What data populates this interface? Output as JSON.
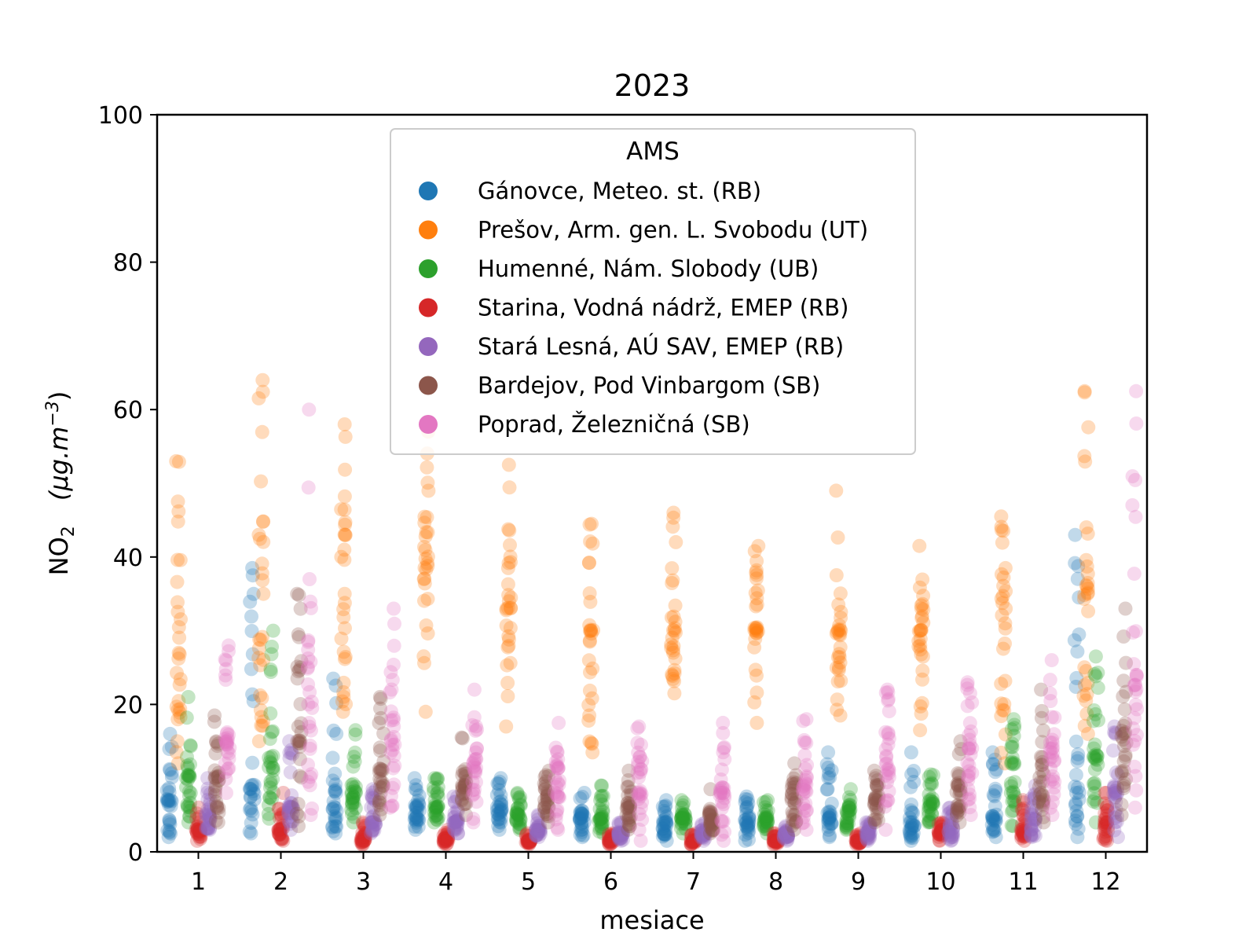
{
  "chart_data": {
    "type": "scatter",
    "title": "2023",
    "xlabel": "mesiace",
    "ylabel_main": "NO",
    "ylabel_sub": "2",
    "ylabel_unit": "(μg.m",
    "ylabel_unit_sup": "−3",
    "ylabel_unit_close": ")",
    "xlim": [
      0.5,
      12.5
    ],
    "ylim": [
      0,
      100
    ],
    "x_ticks": [
      1,
      2,
      3,
      4,
      5,
      6,
      7,
      8,
      9,
      10,
      11,
      12
    ],
    "y_ticks": [
      0,
      20,
      40,
      60,
      80,
      100
    ],
    "grid": false,
    "legend": {
      "title": "AMS",
      "placement": "top-center"
    },
    "series": [
      {
        "name": "Gánovce, Meteo. st. (RB)",
        "color": "#1f77b4",
        "offset": -0.35,
        "min": [
          2,
          2.5,
          2.5,
          3,
          3,
          2,
          1.5,
          1.5,
          2,
          1.5,
          2,
          2
        ],
        "max": [
          16,
          38.5,
          23.5,
          10,
          10,
          8,
          7,
          7.5,
          13.5,
          13.5,
          13.5,
          43
        ],
        "median": [
          7,
          9,
          6,
          6,
          6,
          4.5,
          4,
          4,
          5,
          4,
          4.5,
          8
        ]
      },
      {
        "name": "Prešov, Arm. gen. L. Svobodu (UT)",
        "color": "#ff7f0e",
        "offset": -0.24,
        "min": [
          12,
          15,
          19,
          19,
          17,
          13.5,
          21.5,
          17.5,
          18.5,
          16.5,
          12,
          16
        ],
        "max": [
          53,
          64,
          58,
          57,
          52.5,
          44.5,
          46,
          41.5,
          49,
          41.5,
          45.5,
          62.5
        ],
        "median": [
          27,
          35,
          35,
          37,
          33,
          30,
          30,
          30,
          30,
          30,
          31,
          35
        ]
      },
      {
        "name": "Humenné, Nám. Slobody (UB)",
        "color": "#2ca02c",
        "offset": -0.12,
        "min": [
          4,
          4.5,
          4,
          4,
          3,
          2.5,
          2.5,
          2.5,
          3,
          4,
          3.5,
          4
        ],
        "max": [
          21,
          30,
          16.5,
          10,
          8,
          9,
          7,
          7,
          8.5,
          10.5,
          18,
          26.5
        ],
        "median": [
          10,
          12,
          8,
          6,
          5,
          4.5,
          4.5,
          4.5,
          5.5,
          6.5,
          8,
          13
        ]
      },
      {
        "name": "Starina, Vodná nádrž, EMEP (RB)",
        "color": "#d62728",
        "offset": 0.0,
        "min": [
          1.5,
          1.5,
          1,
          1,
          1,
          1,
          1,
          1,
          1,
          1.5,
          1.5,
          1.5
        ],
        "max": [
          6,
          8,
          4,
          3,
          2.5,
          2.5,
          2.5,
          2.5,
          2.5,
          4,
          7,
          8
        ],
        "median": [
          3,
          3,
          2,
          1.8,
          1.5,
          1.5,
          1.5,
          1.5,
          1.5,
          2.5,
          3,
          4
        ]
      },
      {
        "name": "Stará Lesná, AÚ SAV, EMEP (RB)",
        "color": "#9467bd",
        "offset": 0.12,
        "min": [
          3,
          3,
          2.5,
          2.5,
          2,
          1.5,
          1.5,
          1.5,
          1.5,
          1.5,
          2,
          2
        ],
        "max": [
          10,
          15,
          8.5,
          7.5,
          5,
          4,
          4,
          3.5,
          4,
          6,
          9,
          17
        ],
        "median": [
          5,
          6,
          4,
          4,
          3,
          2.5,
          2.5,
          2.5,
          2.5,
          3,
          4.5,
          8
        ]
      },
      {
        "name": "Bardejov, Pod Vinbargom (SB)",
        "color": "#8c564b",
        "offset": 0.22,
        "min": [
          4,
          3.5,
          5,
          5,
          4,
          3,
          2.5,
          3,
          4,
          4,
          4,
          5
        ],
        "max": [
          18.5,
          35,
          21,
          15.5,
          11,
          11,
          8.5,
          12,
          11,
          15,
          22,
          33
        ],
        "median": [
          10,
          15,
          11,
          9,
          7,
          6,
          5,
          7,
          7,
          9,
          11,
          16
        ]
      },
      {
        "name": "Poprad, Železničná (SB)",
        "color": "#e377c2",
        "offset": 0.35,
        "min": [
          8,
          5,
          6,
          4,
          3,
          1.5,
          1.5,
          3,
          3,
          5,
          5,
          6
        ],
        "max": [
          28,
          60,
          33,
          22,
          17.5,
          17,
          17.5,
          18,
          22,
          23,
          26,
          62.5
        ],
        "median": [
          15,
          20,
          17,
          12,
          10,
          8,
          8,
          9,
          12,
          14,
          14,
          24
        ]
      }
    ]
  }
}
